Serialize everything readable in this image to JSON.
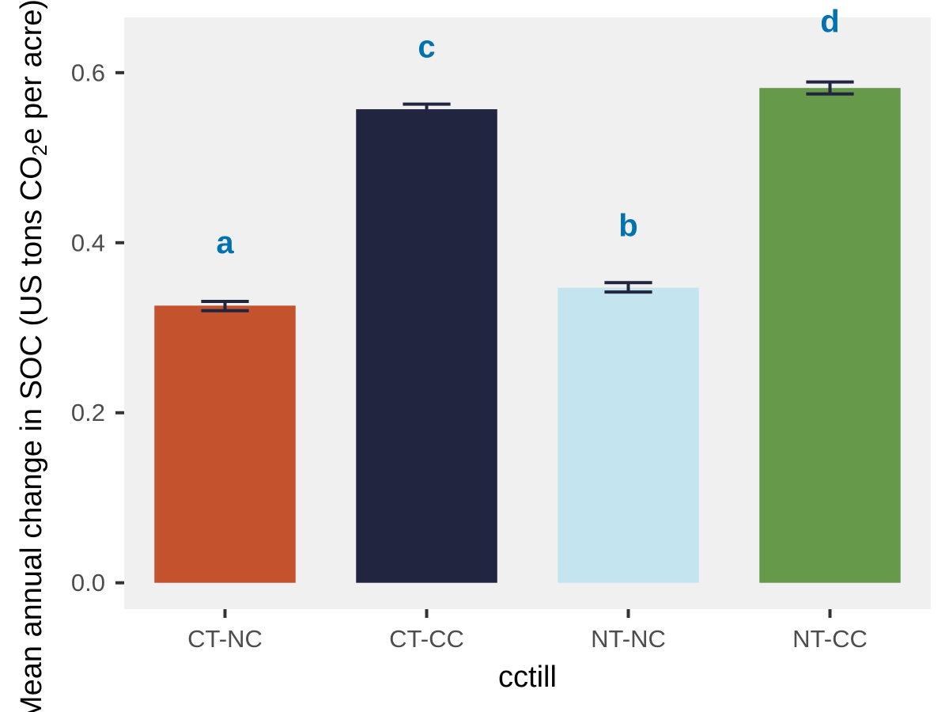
{
  "chart_data": {
    "type": "bar",
    "xlabel": "cctill",
    "ylabel_parts": [
      "Mean annual change in SOC (US tons CO",
      "2",
      "e per acre)"
    ],
    "categories": [
      "CT-NC",
      "CT-CC",
      "NT-NC",
      "NT-CC"
    ],
    "values": [
      0.326,
      0.557,
      0.347,
      0.582
    ],
    "error_low": [
      0.32,
      0.551,
      0.342,
      0.575
    ],
    "error_high": [
      0.331,
      0.563,
      0.353,
      0.589
    ],
    "significance_labels": [
      "a",
      "c",
      "b",
      "d"
    ],
    "significance_y": [
      0.4,
      0.63,
      0.42,
      0.66
    ],
    "colors": [
      "#c4532d",
      "#212540",
      "#c4e4ef",
      "#66994a"
    ],
    "errorbar_color": "#212540",
    "sig_color": "#0072b2",
    "panel_background": "#f0f0f1",
    "ylim": [
      -0.031,
      0.665
    ],
    "yticks": [
      0.0,
      0.2,
      0.4,
      0.6
    ],
    "ytick_labels": [
      "0.0",
      "0.2",
      "0.4",
      "0.6"
    ],
    "grid": false,
    "legend": "none"
  }
}
